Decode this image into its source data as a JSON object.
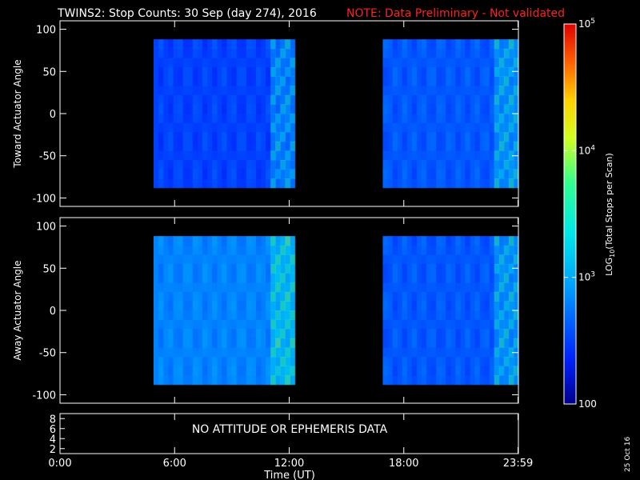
{
  "chart_data": {
    "type": "heatmap",
    "title": "TWINS2: Stop Counts: 30 Sep (day 274), 2016",
    "note": "NOTE: Data Preliminary - Not validated",
    "note_color": "#ff2020",
    "xlabel": "Time (UT)",
    "x_range_hours": [
      0,
      24
    ],
    "x_ticks": [
      {
        "label": "0:00",
        "value": 0
      },
      {
        "label": "6:00",
        "value": 6
      },
      {
        "label": "12:00",
        "value": 12
      },
      {
        "label": "18:00",
        "value": 18
      },
      {
        "label": "23:59",
        "value": 23.98
      }
    ],
    "colorbar": {
      "label_parts": [
        "LOG",
        "10",
        "(Total Stops per Scan)"
      ],
      "scale": "log",
      "range": [
        100,
        100000
      ],
      "ticks": [
        {
          "label": "100",
          "value": 100
        },
        {
          "label_base": "10",
          "label_exp": "3",
          "value": 1000
        },
        {
          "label_base": "10",
          "label_exp": "4",
          "value": 10000
        },
        {
          "label_base": "10",
          "label_exp": "5",
          "value": 100000
        }
      ]
    },
    "panels": [
      {
        "ylabel": "Toward Actuator Angle",
        "y_range": [
          -110,
          110
        ],
        "y_ticks": [
          100,
          50,
          0,
          -50,
          -100
        ],
        "data_segments": [
          {
            "start_hour": 4.9,
            "end_hour": 12.3,
            "angle_min": -88,
            "angle_max": 88,
            "typical_log10_counts": 2.5
          },
          {
            "start_hour": 16.9,
            "end_hour": 24.0,
            "angle_min": -88,
            "angle_max": 88,
            "typical_log10_counts": 2.6
          }
        ]
      },
      {
        "ylabel": "Away Actuator Angle",
        "y_range": [
          -110,
          110
        ],
        "y_ticks": [
          100,
          50,
          0,
          -50,
          -100
        ],
        "data_segments": [
          {
            "start_hour": 4.9,
            "end_hour": 12.3,
            "angle_min": -88,
            "angle_max": 88,
            "typical_log10_counts": 2.8
          },
          {
            "start_hour": 16.9,
            "end_hour": 24.0,
            "angle_min": -88,
            "angle_max": 88,
            "typical_log10_counts": 2.6
          }
        ]
      }
    ],
    "ephemeris_panel": {
      "y_ticks": [
        8,
        6,
        4,
        2
      ],
      "message": "NO ATTITUDE OR EPHEMERIS DATA"
    },
    "stamp": "25 Oct 16"
  }
}
